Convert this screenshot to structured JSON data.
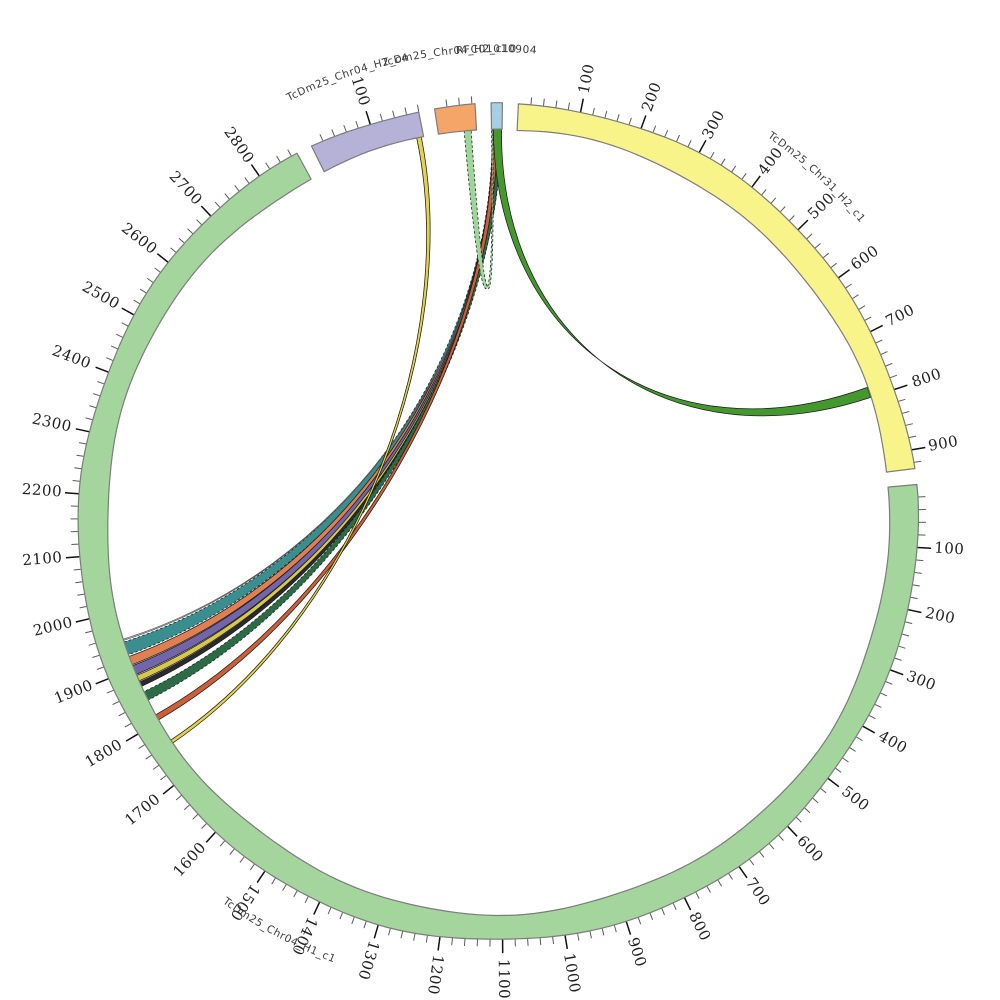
{
  "page": {
    "background": "#ffffff"
  },
  "chart_data": {
    "type": "circos",
    "title": "",
    "legend": "none",
    "grid": "off",
    "segments": [
      {
        "name": "TcDm25_Chr31_H2_c1",
        "length": 930,
        "color": "#f8f48a",
        "tick_major": 100,
        "tick_minor": 20,
        "tick_labels": [
          100,
          200,
          300,
          400,
          500,
          600,
          700,
          800,
          900
        ]
      },
      {
        "name": "TcDm25_Chr04_H1_c1",
        "length": 2870,
        "color": "#a3d59c",
        "tick_major": 100,
        "tick_minor": 20,
        "tick_labels": [
          100,
          200,
          300,
          400,
          500,
          600,
          700,
          800,
          900,
          1000,
          1100,
          1200,
          1300,
          1400,
          1500,
          1600,
          1700,
          1800,
          1900,
          2000,
          2100,
          2200,
          2300,
          2400,
          2500,
          2600,
          2700,
          2800
        ]
      },
      {
        "name": "TcDm25_Chr04_H2_c4",
        "length": 180,
        "color": "#b5b1d7",
        "tick_major": 100,
        "tick_minor": 20,
        "tick_labels": [
          100
        ]
      },
      {
        "name": "TcDm25_Chr04_H2_c10",
        "length": 65,
        "color": "#f4a567",
        "tick_major": 100,
        "tick_minor": 20,
        "tick_labels": []
      },
      {
        "name": "RFC01010904",
        "length": 18,
        "color": "#a6cfe4",
        "tick_major": 100,
        "tick_minor": 20,
        "tick_labels": []
      }
    ],
    "segment_border_color": "#7c7c7c",
    "links": [
      {
        "source": "RFC01010904",
        "s": [
          1,
          17
        ],
        "target": "TcDm25_Chr04_H1_c1",
        "t": [
          1948,
          1925
        ],
        "color": "#3a8e8e",
        "pull": 0.42,
        "dash": true
      },
      {
        "source": "RFC01010904",
        "s": [
          2,
          15
        ],
        "target": "TcDm25_Chr04_H1_c1",
        "t": [
          1922,
          1907
        ],
        "color": "#e08050",
        "pull": 0.42,
        "dash": false
      },
      {
        "source": "RFC01010904",
        "s": [
          3,
          15
        ],
        "target": "TcDm25_Chr04_H1_c1",
        "t": [
          1905,
          1889
        ],
        "color": "#7265ab",
        "pull": 0.42,
        "dash": false
      },
      {
        "source": "RFC01010904",
        "s": [
          4,
          14
        ],
        "target": "TcDm25_Chr04_H1_c1",
        "t": [
          1887,
          1877
        ],
        "color": "#d8c84a",
        "pull": 0.42,
        "dash": false
      },
      {
        "source": "RFC01010904",
        "s": [
          5,
          13
        ],
        "target": "TcDm25_Chr04_H1_c1",
        "t": [
          1875,
          1867
        ],
        "color": "#2a2a30",
        "pull": 0.42,
        "dash": false
      },
      {
        "source": "RFC01010904",
        "s": [
          8,
          10
        ],
        "target": "TcDm25_Chr04_H1_c1",
        "t": [
          1953,
          1951
        ],
        "color": "#ffffff",
        "pull": 0.42,
        "dash": false
      },
      {
        "source": "RFC01010904",
        "s": [
          6,
          16
        ],
        "target": "TcDm25_Chr04_H1_c1",
        "t": [
          1857,
          1841
        ],
        "color": "#2d6b46",
        "pull": 0.43,
        "dash": true
      },
      {
        "source": "RFC01010904",
        "s": [
          2,
          10
        ],
        "target": "TcDm25_Chr04_H1_c1",
        "t": [
          1813,
          1803
        ],
        "color": "#cc5f3a",
        "pull": 0.44,
        "dash": false
      },
      {
        "source": "TcDm25_Chr04_H2_c4",
        "s": [
          168,
          176
        ],
        "target": "TcDm25_Chr04_H1_c1",
        "t": [
          1763,
          1757
        ],
        "color": "#e3d24e",
        "pull": 0.45,
        "dash": false
      },
      {
        "source": "TcDm25_Chr04_H2_c10",
        "s": [
          44,
          56
        ],
        "target": "RFC01010904",
        "t": [
          0,
          2
        ],
        "color": "#9ed598",
        "pull": 0.46,
        "dash": true
      },
      {
        "source": "RFC01010904",
        "s": [
          3,
          17
        ],
        "target": "TcDm25_Chr31_H2_c1",
        "t": [
          782,
          800
        ],
        "color": "#44992e",
        "pull": 0.46,
        "dash": false
      }
    ]
  }
}
